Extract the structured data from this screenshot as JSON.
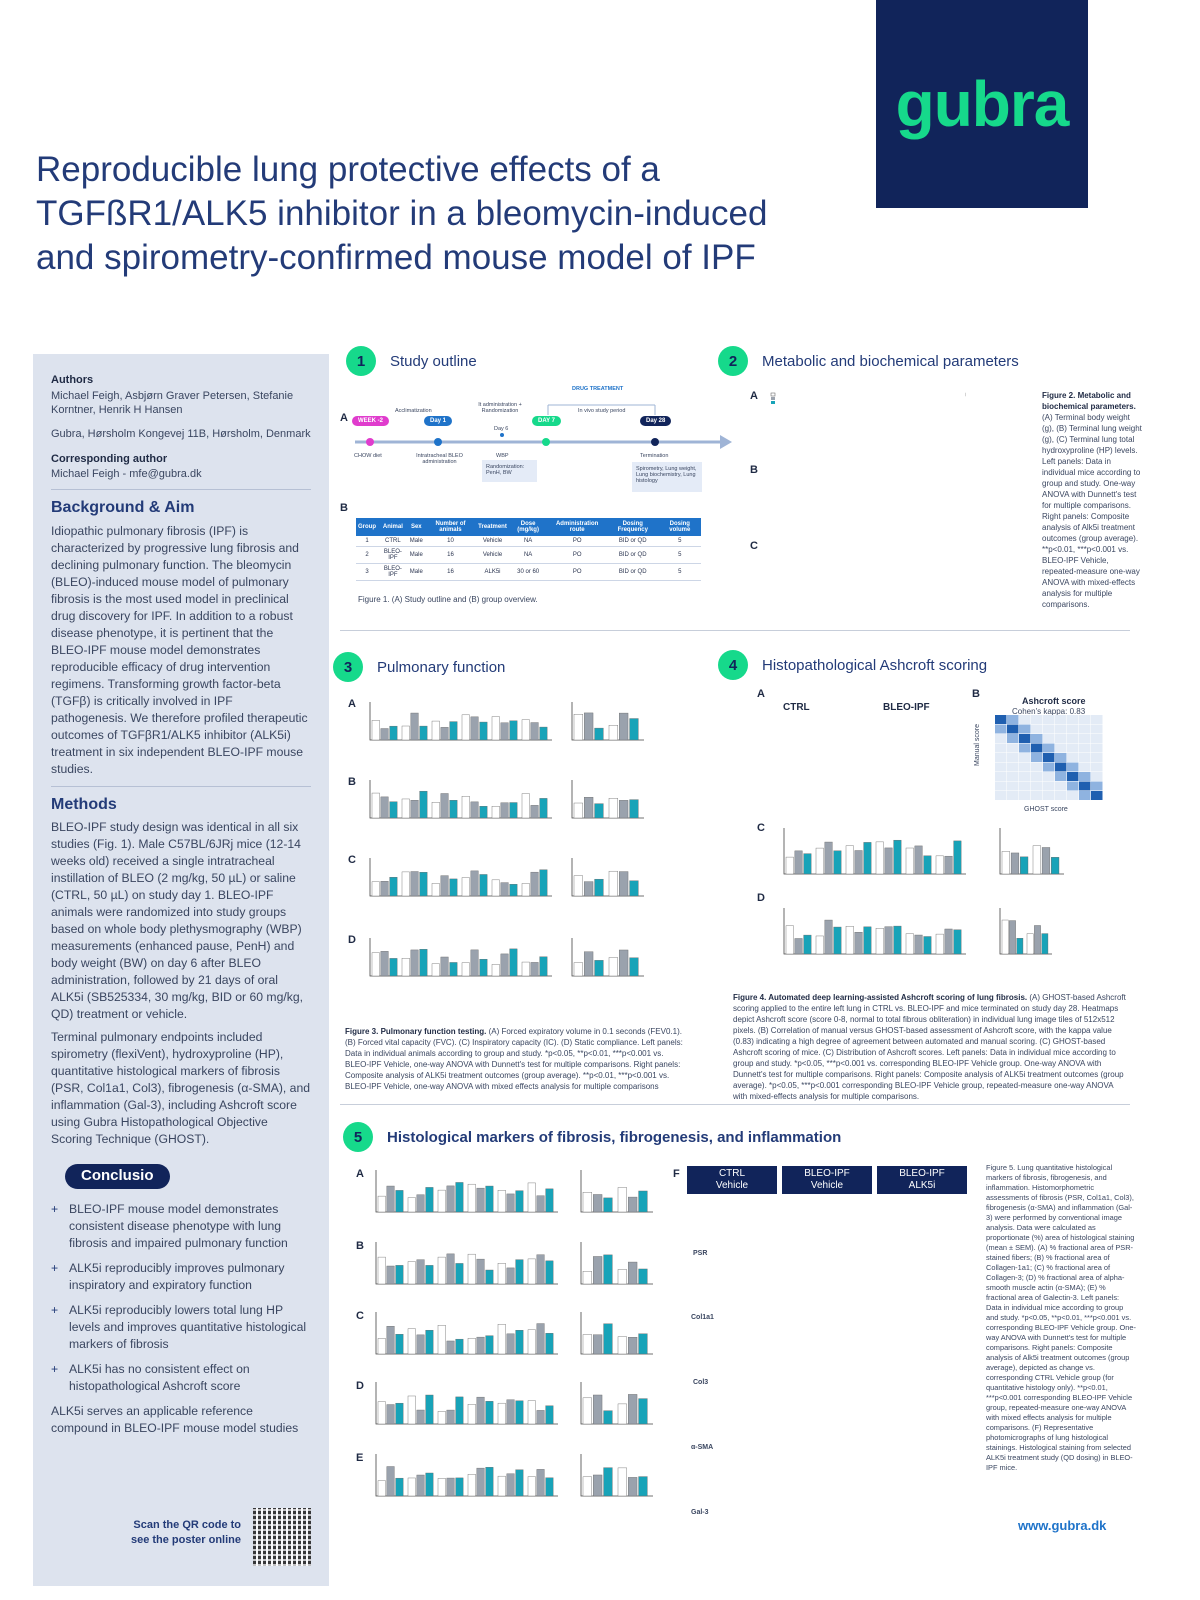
{
  "logo": {
    "text": "gubra"
  },
  "title": "Reproducible lung protective effects of a TGFßR1/ALK5 inhibitor in a bleomycin-induced and spirometry-confirmed mouse model of IPF",
  "sidebar": {
    "authors_label": "Authors",
    "authors": "Michael Feigh, Asbjørn Graver Petersen, Stefanie Korntner, Henrik H Hansen",
    "address": "Gubra, Hørsholm Kongevej 11B, Hørsholm, Denmark",
    "corresponding_label": "Corresponding author",
    "corresponding": "Michael Feigh - mfe@gubra.dk",
    "background_heading": "Background & Aim",
    "background_text": "Idiopathic pulmonary fibrosis (IPF) is characterized by progressive lung fibrosis and declining pulmonary function. The bleomycin (BLEO)-induced mouse model of pulmonary fibrosis is the most used model in preclinical drug discovery for IPF. In addition to a robust disease phenotype, it is pertinent that the BLEO-IPF mouse model demonstrates reproducible efficacy of drug intervention regimens. Transforming growth factor-beta (TGFβ) is critically involved in IPF pathogenesis. We therefore profiled therapeutic outcomes of TGFβR1/ALK5 inhibitor (ALK5i) treatment in six independent BLEO-IPF mouse studies.",
    "methods_heading": "Methods",
    "methods_text_1": "BLEO-IPF study design was identical in all six studies (Fig. 1). Male C57BL/6JRj mice (12-14 weeks old) received a single intratracheal instillation of BLEO (2 mg/kg, 50 µL) or saline (CTRL, 50 µL) on study day 1. BLEO-IPF animals were randomized into study groups based on whole body plethysmography (WBP) measurements (enhanced pause, PenH) and body weight (BW) on day 6 after BLEO administration, followed by 21 days of oral ALK5i (SB525334, 30 mg/kg, BID or 60 mg/kg, QD) treatment or vehicle.",
    "methods_text_2": "Terminal pulmonary endpoints included spirometry (flexiVent), hydroxyproline (HP), quantitative histological markers of fibrosis (PSR, Col1a1, Col3), fibrogenesis (α-SMA), and inflammation (Gal-3), including Ashcroft score using Gubra Histopathological Objective Scoring Technique (GHOST).",
    "conclusio_label": "Conclusio",
    "bullets": [
      "BLEO-IPF mouse model demonstrates consistent disease phenotype with lung fibrosis and impaired pulmonary function",
      "ALK5i reproducibly improves pulmonary inspiratory and expiratory function",
      "ALK5i reproducibly lowers total lung HP levels and improves quantitative histological markers of fibrosis",
      "ALK5i has no consistent effect on histopathological Ashcroft score"
    ],
    "closing": "ALK5i serves an applicable reference compound in BLEO-IPF mouse model studies",
    "qr_text": "Scan the QR code to see the poster online"
  },
  "sections": {
    "s1": {
      "num": "1",
      "title": "Study outline"
    },
    "s2": {
      "num": "2",
      "title": "Metabolic and biochemical parameters"
    },
    "s3": {
      "num": "3",
      "title": "Pulmonary function"
    },
    "s4": {
      "num": "4",
      "title": "Histopathological Ashcroft scoring"
    },
    "s5": {
      "num": "5",
      "title": "Histological markers of fibrosis, fibrogenesis, and inflammation"
    }
  },
  "timeline": {
    "drug_treatment": "DRUG TREATMENT",
    "acclimatization": "Acclimatization",
    "it_admin": "It administration + Randomization",
    "in_vivo": "In vivo study period",
    "week": "WEEK -2",
    "day1": "Day 1",
    "day7": "DAY 7",
    "day28": "Day 28",
    "day6": "Day 6",
    "chow": "CHOW diet",
    "intratracheal": "Intratracheal BLEO administration",
    "wbp": "WBP",
    "termination": "Termination",
    "randomization": "Randomization: PenH, BW",
    "endpoints": "Spirometry, Lung weight, Lung biochemistry, Lung histology"
  },
  "table": {
    "headers": [
      "Group",
      "Animal",
      "Sex",
      "Number of animals",
      "Treatment",
      "Dose (mg/kg)",
      "Administration route",
      "Dosing Frequency",
      "Dosing volume"
    ],
    "rows": [
      [
        "1",
        "CTRL",
        "Male",
        "10",
        "Vehicle",
        "NA",
        "PO",
        "BID or QD",
        "5"
      ],
      [
        "2",
        "BLEO-IPF",
        "Male",
        "16",
        "Vehicle",
        "NA",
        "PO",
        "BID or QD",
        "5"
      ],
      [
        "3",
        "BLEO-IPF",
        "Male",
        "16",
        "ALK5i",
        "30 or 60",
        "PO",
        "BID or QD",
        "5"
      ]
    ]
  },
  "captions": {
    "fig1": "Figure 1. (A) Study outline and (B) group overview.",
    "fig2_title": "Figure 2. Metabolic and biochemical parameters.",
    "fig2": "(A) Terminal body weight (g), (B) Terminal lung weight (g), (C) Terminal lung total hydroxyproline (HP) levels. Left panels: Data in individual mice according to group and study. One-way ANOVA with Dunnett's test for multiple comparisons. Right panels: Composite analysis of Alk5i treatment outcomes (group average). **p<0.01, ***p<0.001 vs. BLEO-IPF Vehicle, repeated-measure one-way ANOVA with mixed-effects analysis for multiple comparisons.",
    "fig3_title": "Figure 3. Pulmonary function testing.",
    "fig3": "(A) Forced expiratory volume in 0.1 seconds (FEV0.1). (B) Forced vital capacity (FVC). (C) Inspiratory capacity (IC). (D) Static compliance. Left panels: Data in individual animals according to group and study. *p<0.05, **p<0.01, ***p<0.001 vs. BLEO-IPF Vehicle, one-way ANOVA with Dunnett's test for multiple comparisons. Right panels: Composite analysis of ALK5i treatment outcomes (group average). **p<0.01, ***p<0.001 vs. BLEO-IPF Vehicle, one-way ANOVA with mixed effects analysis for multiple comparisons",
    "fig4_title": "Figure 4. Automated deep learning-assisted Ashcroft scoring of lung fibrosis.",
    "fig4": "(A) GHOST-based Ashcroft scoring applied to the entire left lung in CTRL vs. BLEO-IPF and mice terminated on study day 28. Heatmaps depict Ashcroft score (score 0-8, normal to total fibrous obliteration) in individual lung image tiles of 512x512 pixels. (B) Correlation of manual versus GHOST-based assessment of Ashcroft score, with the kappa value (0.83) indicating a high degree of agreement between automated and manual scoring. (C) GHOST-based Ashcroft scoring of mice. (C) Distribution of Ashcroft scores. Left panels: Data in individual mice according to group and study. *p<0.05, ***p<0.001 vs. corresponding BLEO-IPF Vehicle group. One-way ANOVA with Dunnett's test for multiple comparisons. Right panels: Composite analysis of ALK5i treatment outcomes (group average). *p<0.05, ***p<0.001 corresponding BLEO-IPF Vehicle group, repeated-measure one-way ANOVA with mixed-effects analysis for multiple comparisons.",
    "fig5": "Figure 5. Lung quantitative histological markers of fibrosis, fibrogenesis, and inflammation. Histomorphometric assessments of fibrosis (PSR, Col1a1, Col3), fibrogenesis (α-SMA) and inflammation (Gal-3) were performed by conventional image analysis. Data were calculated as proportionate (%) area of histological staining (mean ± SEM). (A) % fractional area of PSR-stained fibers; (B) % fractional area of Collagen-1a1; (C) % fractional area of Collagen-3; (D) % fractional area of alpha-smooth muscle actin (α-SMA); (E) % fractional area of Galectin-3. Left panels: Data in individual mice according to group and study. *p<0.05, **p<0.01, ***p<0.001 vs. corresponding BLEO-IPF Vehicle group. One-way ANOVA with Dunnett's test for multiple comparisons. Right panels: Composite analysis of Alk5i treatment outcomes (group average), depicted as change vs. corresponding CTRL Vehicle group (for quantitative histology only). **p<0.01, ***p<0.001 corresponding BLEO-IPF Vehicle group, repeated-measure one-way ANOVA with mixed effects analysis for multiple comparisons. (F) Representative photomicrographs of lung histological stainings. Histological staining from selected ALK5i treatment study (QD dosing) in BLEO-IPF mice."
  },
  "panel_letters": {
    "a": "A",
    "b": "B",
    "c": "C",
    "d": "D",
    "e": "E",
    "f": "F"
  },
  "fig4_labels": {
    "ctrl": "CTRL",
    "bleo": "BLEO-IPF",
    "ashcroft": "Ashcroft score",
    "kappa": "Cohen's kappa: 0.83",
    "manual": "Manual score",
    "ghost": "GHOST score"
  },
  "fig5_headers": [
    {
      "l1": "CTRL",
      "l2": "Vehicle"
    },
    {
      "l1": "BLEO-IPF",
      "l2": "Vehicle"
    },
    {
      "l1": "BLEO-IPF",
      "l2": "ALK5i"
    }
  ],
  "fig5_rows": [
    "PSR",
    "Col1a1",
    "Col3",
    "α-SMA",
    "Gal-3"
  ],
  "website": "www.gubra.dk",
  "colors": {
    "navy": "#11245a",
    "green": "#16d98b",
    "blue": "#1f73c9",
    "teal": "#18a3b8"
  }
}
